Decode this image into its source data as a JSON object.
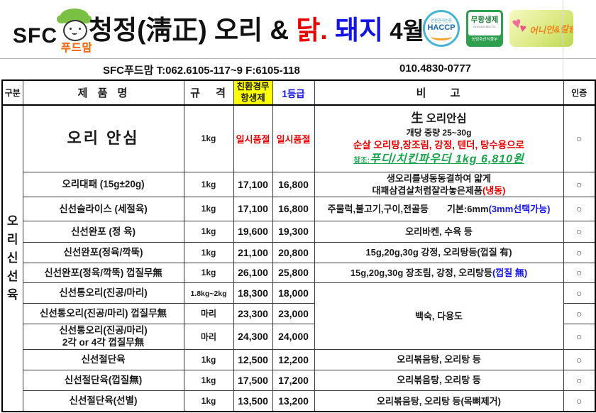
{
  "logo": {
    "sfc": "SFC",
    "brand": "푸드맘"
  },
  "title": {
    "black1": "청정(淸正)  오리  & ",
    "red": "닭.",
    "blue": " 돼지",
    "black2": " 4월"
  },
  "badges": {
    "haccp": {
      "top": "안전관리인증",
      "main": "HACCP"
    },
    "antibiotic": {
      "main": "무항생제",
      "sub": "NON-ANTIBIOTIC",
      "bottom": "농림축산식품부"
    },
    "onion": {
      "text": "어니언&칼슘"
    }
  },
  "contact": {
    "left": "SFC푸드맘 T:062.6105-117~9  F:6105-118",
    "right": "010.4830-0777"
  },
  "table": {
    "headers": {
      "gubun": "구분",
      "product": "제 품 명",
      "spec": "규 격",
      "eco_line1": "친환경무",
      "eco_line2": "항생제",
      "grade": "1등급",
      "note": "비 고",
      "cert": "인증"
    },
    "category": "오리신선육",
    "rows": [
      {
        "h": 94,
        "product": {
          "lines": [
            "오리 안심"
          ],
          "cls": "product-xl"
        },
        "spec": "1kg",
        "eco": {
          "t": "일시품절",
          "cls": "soldout"
        },
        "grade": {
          "t": "일시품절",
          "cls": "soldout"
        },
        "note": {
          "lines": [
            [
              {
                "t": "生",
                "cls": "sheng"
              },
              {
                "t": " 오리안심",
                "cls": "note-big"
              }
            ],
            [
              {
                "t": "개당 중량 25~30g",
                "cls": "note-plain"
              }
            ],
            [
              {
                "t": "순살 오리탕,장조림, 강정, 텐더, 탕수용으로",
                "cls": "red-line"
              }
            ],
            [
              {
                "t": "참조:",
                "cls": "green-small"
              },
              {
                "t": "푸디/치킨파우더 1kg 6,810원",
                "cls": "green-script"
              }
            ]
          ]
        },
        "cert": "○"
      },
      {
        "h": 34,
        "product": {
          "lines": [
            "오리대패 (15g±20g)"
          ]
        },
        "spec": "1kg",
        "eco": {
          "t": "17,100"
        },
        "grade": {
          "t": "16,800"
        },
        "note": {
          "lines": [
            [
              {
                "t": "생오리를냉동동결하여 얇게"
              }
            ],
            [
              {
                "t": "대패삼겹살처럼잘라놓은제품"
              },
              {
                "t": "(냉동)",
                "cls": "note-red"
              }
            ]
          ]
        },
        "cert": "○"
      },
      {
        "h": 34,
        "product": {
          "lines": [
            "신선슬라이스 (세절육)"
          ]
        },
        "spec": "1kg",
        "eco": {
          "t": "17,100"
        },
        "grade": {
          "t": "16,800"
        },
        "note": {
          "lines": [
            [
              {
                "t": "주물럭,불고기,구이,전골등"
              },
              {
                "t": "기본:6mm",
                "cls": "gap-left"
              },
              {
                "t": "(3mm선택가능)",
                "cls": "note-blue"
              }
            ]
          ]
        },
        "cert": "○"
      },
      {
        "h": 30,
        "product": {
          "lines": [
            "신선완포 (정 육)"
          ]
        },
        "spec": "1kg",
        "eco": {
          "t": "19,600"
        },
        "grade": {
          "t": "19,300"
        },
        "note": {
          "lines": [
            [
              {
                "t": "오리바켄, 수육 등"
              }
            ]
          ]
        },
        "cert": "○"
      },
      {
        "h": 29,
        "product": {
          "lines": [
            "신선완포(정육/깍뚝)"
          ]
        },
        "spec": "1kg",
        "eco": {
          "t": "21,100"
        },
        "grade": {
          "t": "20,800"
        },
        "note": {
          "lines": [
            [
              {
                "t": "15g,20g,30g 강정, 오리탕등(껍질 有)"
              }
            ]
          ]
        },
        "cert": "○"
      },
      {
        "h": 28,
        "product": {
          "lines": [
            "신선완포(정육/깍뚝) 껍질무無"
          ]
        },
        "spec": "1kg",
        "eco": {
          "t": "26,100"
        },
        "grade": {
          "t": "25,800"
        },
        "note": {
          "lines": [
            [
              {
                "t": "15g,20g,30g 장조림, 강정, 오리탕등"
              },
              {
                "t": "(껍질 無)",
                "cls": "note-blue"
              }
            ]
          ]
        },
        "cert": "○"
      },
      {
        "h": 29,
        "product": {
          "lines": [
            "신선통오리(진공/마리)"
          ]
        },
        "spec": "1.8kg~2kg",
        "spec_small": true,
        "eco": {
          "t": "18,300"
        },
        "grade": {
          "t": "18,000"
        },
        "note": {
          "rowspan": 3,
          "lines": [
            [
              {
                "t": "백숙, 다용도"
              }
            ]
          ]
        },
        "cert": "○"
      },
      {
        "h": 29,
        "product": {
          "lines": [
            "신선통오리(진공/마리) 껍질무無"
          ]
        },
        "spec": "마리",
        "eco": {
          "t": "23,300"
        },
        "grade": {
          "t": "23,000"
        },
        "note": null,
        "cert": "○"
      },
      {
        "h": 36,
        "product": {
          "lines": [
            "신선통오리(진공/마리)",
            "2각 or 4각 껍질무無"
          ]
        },
        "spec": "마리",
        "eco": {
          "t": "24,300"
        },
        "grade": {
          "t": "24,000"
        },
        "note": null,
        "cert": "○"
      },
      {
        "h": 29,
        "product": {
          "lines": [
            "신선절단육"
          ]
        },
        "spec": "1kg",
        "eco": {
          "t": "12,500"
        },
        "grade": {
          "t": "12,200"
        },
        "note": {
          "lines": [
            [
              {
                "t": "오리볶음탕, 오리탕 등"
              }
            ]
          ]
        },
        "cert": "○"
      },
      {
        "h": 29,
        "product": {
          "lines": [
            "신선절단육(껍질無)"
          ]
        },
        "spec": "1kg",
        "eco": {
          "t": "17,500"
        },
        "grade": {
          "t": "17,200"
        },
        "note": {
          "lines": [
            [
              {
                "t": "오리볶음탕, 오리탕 등"
              }
            ]
          ]
        },
        "cert": "○"
      },
      {
        "h": 30,
        "product": {
          "lines": [
            "신선절단육(선별)"
          ]
        },
        "spec": "1kg",
        "eco": {
          "t": "13,500"
        },
        "grade": {
          "t": "13,200"
        },
        "note": {
          "lines": [
            [
              {
                "t": "오리볶음탕, 오리탕 등(목뼈제거)"
              }
            ]
          ]
        },
        "cert": "○"
      }
    ]
  },
  "colors": {
    "red": "#e60000",
    "blue": "#1414e6",
    "green": "#18a54d",
    "header_yellow": "#ffff00",
    "logo_orange": "#f36f21",
    "hat_green": "#7ac143"
  }
}
